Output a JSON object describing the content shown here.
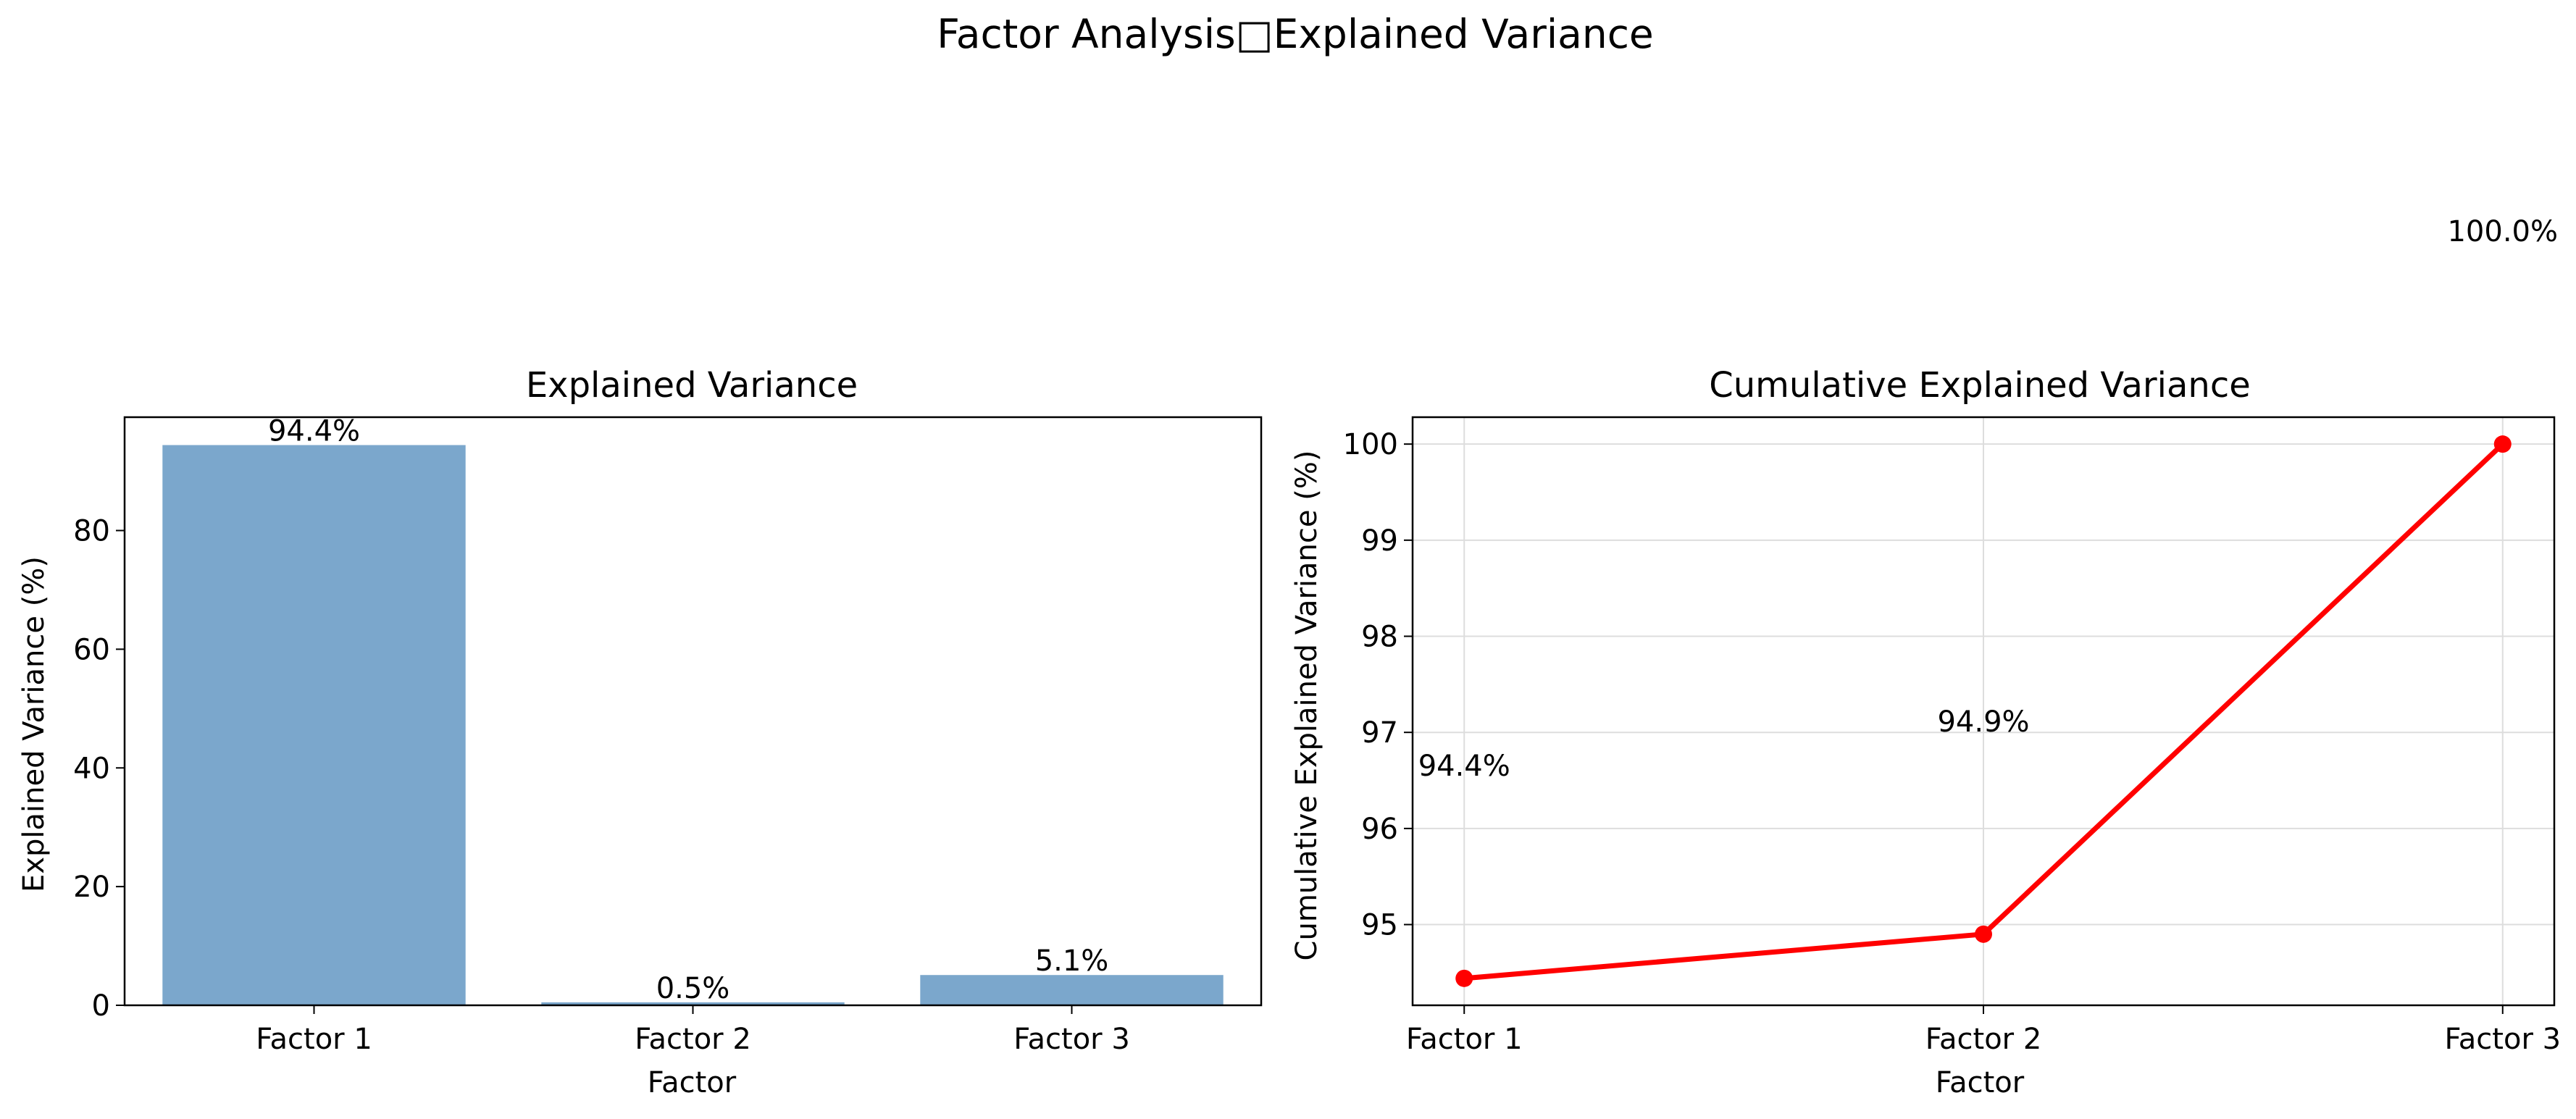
{
  "figure": {
    "suptitle": "Factor Analysis□Explained Variance"
  },
  "colors": {
    "bar": "#7ba7cc",
    "line": "#ff0000",
    "grid": "#dddddd",
    "axis": "#000000"
  },
  "chart_data": [
    {
      "type": "bar",
      "title": "Explained Variance",
      "xlabel": "Factor",
      "ylabel": "Explained Variance (%)",
      "categories": [
        "Factor 1",
        "Factor 2",
        "Factor 3"
      ],
      "values": [
        94.4,
        0.5,
        5.1
      ],
      "data_labels": [
        "94.4%",
        "0.5%",
        "5.1%"
      ],
      "ylim": [
        0,
        99.1
      ],
      "yticks": [
        0,
        20,
        40,
        60,
        80
      ],
      "grid": false
    },
    {
      "type": "line",
      "title": "Cumulative Explained Variance",
      "xlabel": "Factor",
      "ylabel": "Cumulative Explained Variance  (%)",
      "categories": [
        "Factor 1",
        "Factor 2",
        "Factor 3"
      ],
      "values": [
        94.44,
        94.9,
        100.0
      ],
      "data_labels": [
        "94.4%",
        "94.9%",
        "100.0%"
      ],
      "ylim": [
        94.16,
        100.28
      ],
      "yticks": [
        95,
        96,
        97,
        98,
        99,
        100
      ],
      "grid": true,
      "markers": true
    }
  ]
}
